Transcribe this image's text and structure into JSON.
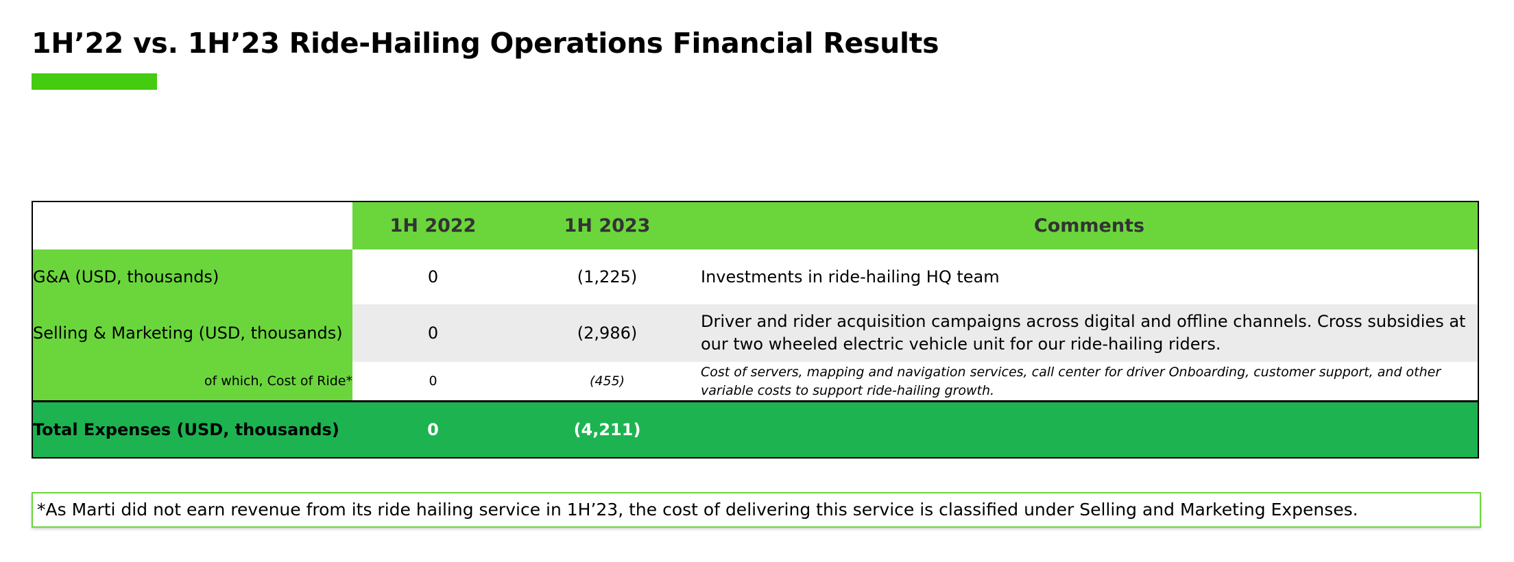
{
  "title": "1H’22 vs. 1H’23 Ride-Hailing Operations Financial Results",
  "colors": {
    "accent_green": "#44cc11",
    "header_green": "#6bd63c",
    "total_green": "#1db350",
    "alt_row_gray": "#ebebeb"
  },
  "table": {
    "headers": {
      "label": "",
      "h2022": "1H 2022",
      "h2023": "1H 2023",
      "comments": "Comments"
    },
    "rows": [
      {
        "label": "G&A (USD, thousands)",
        "v2022": "0",
        "v2023": "(1,225)",
        "comment": "Investments in ride-hailing HQ team"
      },
      {
        "label": "Selling & Marketing (USD, thousands)",
        "v2022": "0",
        "v2023": "(2,986)",
        "comment": "Driver and rider acquisition campaigns across digital and offline channels. Cross subsidies at our two wheeled electric vehicle unit for our ride-hailing riders."
      },
      {
        "label": "of which, Cost of Ride*",
        "v2022": "0",
        "v2023": "(455)",
        "comment": "Cost of servers, mapping and navigation services, call center for driver Onboarding, customer support, and other variable costs to support ride-hailing growth."
      }
    ],
    "total": {
      "label": "Total Expenses (USD, thousands)",
      "v2022": "0",
      "v2023": "(4,211)",
      "comment": ""
    }
  },
  "footnote": "*As Marti did not earn revenue from its ride hailing service in 1H’23, the cost of delivering this service is classified under Selling and Marketing Expenses."
}
